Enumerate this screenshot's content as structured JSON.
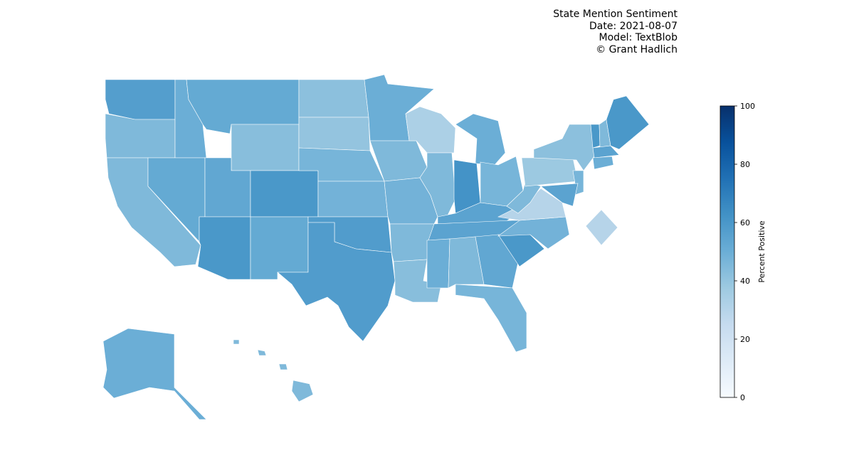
{
  "chart_data": {
    "type": "choropleth",
    "title": "State Mention Sentiment",
    "subtitle": [
      "Date: 2021-08-07",
      "Model: TextBlob",
      "© Grant Hadlich"
    ],
    "colorbar_label": "Percent Positive",
    "clim": [
      0,
      100
    ],
    "cticks": [
      0,
      20,
      40,
      60,
      80,
      100
    ],
    "colormap": "Blues",
    "values": [
      57,
      45,
      45,
      50,
      52,
      43,
      52,
      53,
      60,
      60,
      52,
      42,
      40,
      47,
      48,
      58,
      58,
      50,
      45,
      48,
      45,
      43,
      33,
      45,
      50,
      62,
      47,
      55,
      55,
      50,
      45,
      53,
      47,
      60,
      48,
      30,
      45,
      38,
      42,
      47,
      55,
      60,
      45,
      60,
      55,
      50,
      30,
      50,
      45
    ]
  }
}
